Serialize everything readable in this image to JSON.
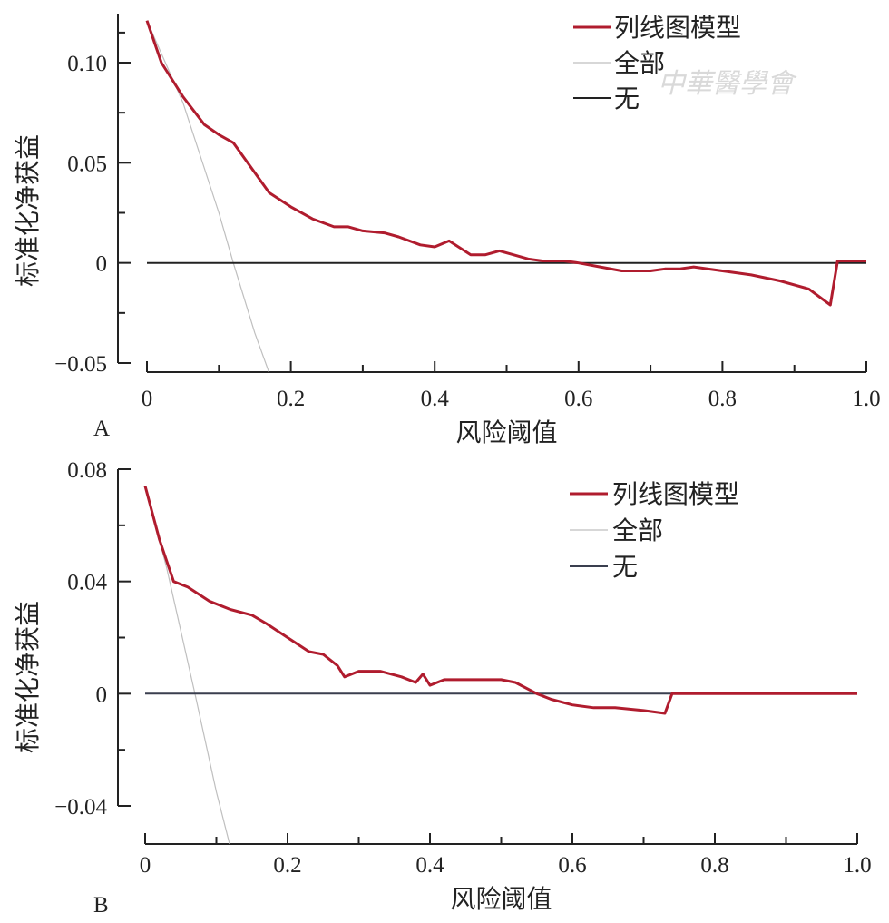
{
  "watermark": "中華醫學會",
  "chart_data": [
    {
      "type": "line",
      "panel_label": "A",
      "xlabel": "风险阈值",
      "ylabel": "标准化净获益",
      "xlim": [
        0,
        1.0
      ],
      "ylim": [
        -0.05,
        0.12
      ],
      "x_ticks": [
        0,
        0.2,
        0.4,
        0.6,
        0.8,
        1.0
      ],
      "x_tick_labels": [
        "0",
        "0.2",
        "0.4",
        "0.6",
        "0.8",
        "1.0"
      ],
      "y_ticks": [
        -0.05,
        0,
        0.05,
        0.1
      ],
      "y_tick_labels": [
        "−0.05",
        "0",
        "0.05",
        "0.10"
      ],
      "legend_position": "top-right",
      "series": [
        {
          "name": "列线图模型",
          "color": "#b01c2e",
          "x": [
            0,
            0.02,
            0.05,
            0.08,
            0.1,
            0.12,
            0.14,
            0.17,
            0.2,
            0.23,
            0.26,
            0.28,
            0.3,
            0.33,
            0.35,
            0.38,
            0.4,
            0.42,
            0.45,
            0.47,
            0.49,
            0.51,
            0.53,
            0.55,
            0.58,
            0.6,
            0.63,
            0.66,
            0.68,
            0.7,
            0.72,
            0.74,
            0.76,
            0.8,
            0.84,
            0.88,
            0.92,
            0.95,
            0.96,
            1.0
          ],
          "y": [
            0.121,
            0.1,
            0.083,
            0.069,
            0.064,
            0.06,
            0.05,
            0.035,
            0.028,
            0.022,
            0.018,
            0.018,
            0.016,
            0.015,
            0.013,
            0.009,
            0.008,
            0.011,
            0.004,
            0.004,
            0.006,
            0.004,
            0.002,
            0.001,
            0.001,
            0.0,
            -0.002,
            -0.004,
            -0.004,
            -0.004,
            -0.003,
            -0.003,
            -0.002,
            -0.004,
            -0.006,
            -0.009,
            -0.013,
            -0.021,
            0.001,
            0.001
          ]
        },
        {
          "name": "全部",
          "color": "#bfbfbf",
          "x": [
            0,
            0.05,
            0.1,
            0.12,
            0.15,
            0.17
          ],
          "y": [
            0.121,
            0.08,
            0.025,
            0.0,
            -0.035,
            -0.055
          ]
        },
        {
          "name": "无",
          "color": "#222222",
          "x": [
            0,
            1.0
          ],
          "y": [
            0,
            0
          ]
        }
      ]
    },
    {
      "type": "line",
      "panel_label": "B",
      "xlabel": "风险阈值",
      "ylabel": "标准化净获益",
      "xlim": [
        0,
        1.0
      ],
      "ylim": [
        -0.055,
        0.08
      ],
      "x_ticks": [
        0,
        0.2,
        0.4,
        0.6,
        0.8,
        1.0
      ],
      "x_tick_labels": [
        "0",
        "0.2",
        "0.4",
        "0.6",
        "0.8",
        "1.0"
      ],
      "y_ticks": [
        -0.04,
        0,
        0.04,
        0.08
      ],
      "y_tick_labels": [
        "−0.04",
        "0",
        "0.04",
        "0.08"
      ],
      "legend_position": "top-right",
      "series": [
        {
          "name": "列线图模型",
          "color": "#b01c2e",
          "x": [
            0,
            0.02,
            0.04,
            0.06,
            0.09,
            0.12,
            0.15,
            0.17,
            0.2,
            0.23,
            0.25,
            0.27,
            0.28,
            0.3,
            0.33,
            0.36,
            0.38,
            0.39,
            0.4,
            0.42,
            0.45,
            0.47,
            0.5,
            0.52,
            0.55,
            0.57,
            0.6,
            0.63,
            0.66,
            0.7,
            0.73,
            0.74,
            0.8,
            1.0
          ],
          "y": [
            0.074,
            0.055,
            0.04,
            0.038,
            0.033,
            0.03,
            0.028,
            0.025,
            0.02,
            0.015,
            0.014,
            0.01,
            0.006,
            0.008,
            0.008,
            0.006,
            0.004,
            0.007,
            0.003,
            0.005,
            0.005,
            0.005,
            0.005,
            0.004,
            0.0,
            -0.002,
            -0.004,
            -0.005,
            -0.005,
            -0.006,
            -0.007,
            0.0,
            0.0,
            0.0
          ]
        },
        {
          "name": "全部",
          "color": "#bfbfbf",
          "x": [
            0,
            0.03,
            0.07,
            0.1,
            0.12
          ],
          "y": [
            0.074,
            0.045,
            0.0,
            -0.035,
            -0.055
          ]
        },
        {
          "name": "无",
          "color": "#3a3f4f",
          "x": [
            0,
            1.0
          ],
          "y": [
            0,
            0
          ]
        }
      ]
    }
  ]
}
